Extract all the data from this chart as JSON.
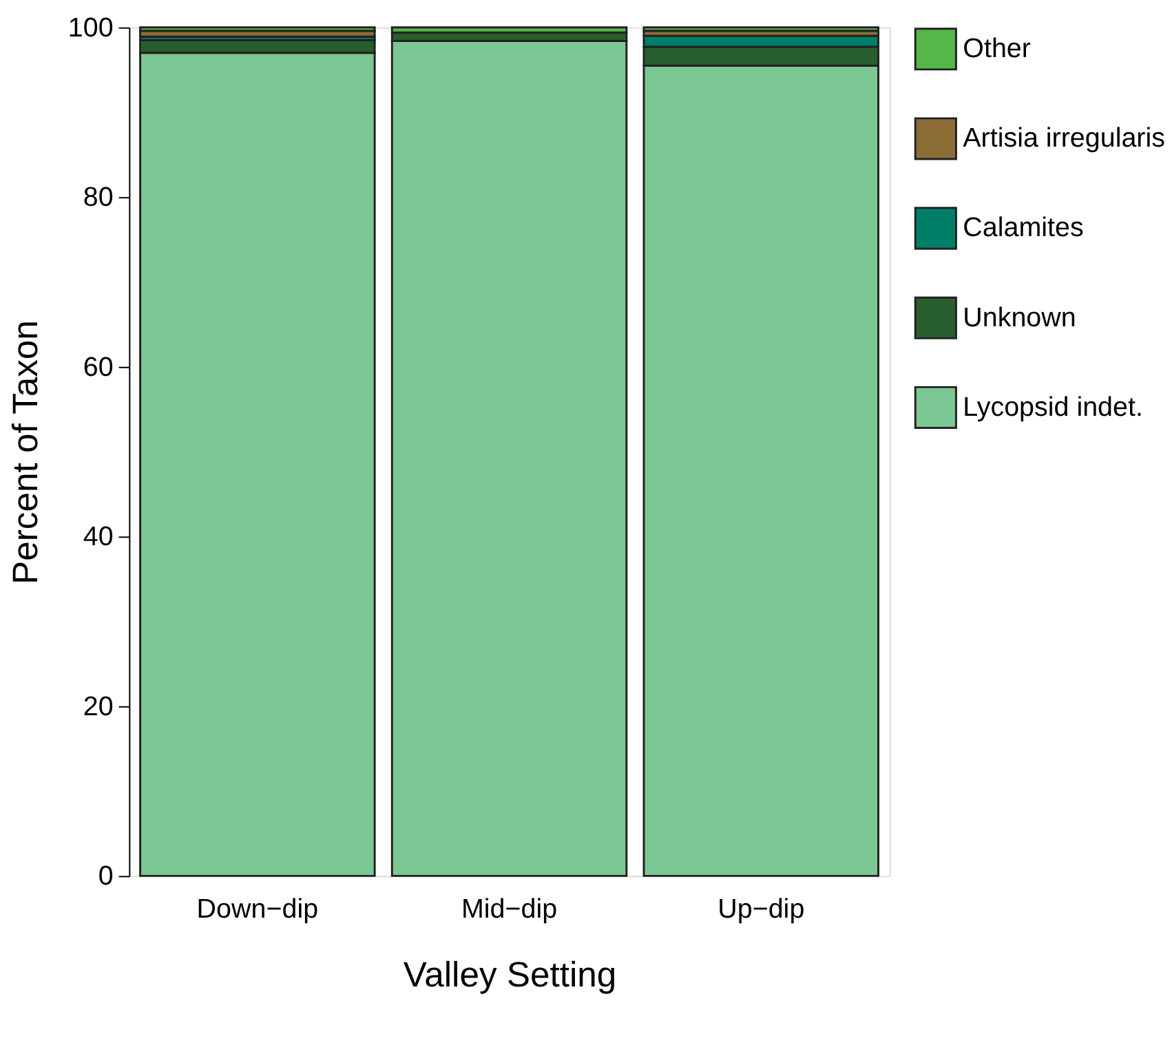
{
  "chart_data": {
    "type": "bar",
    "stacked": true,
    "xlabel": "Valley Setting",
    "ylabel": "Percent of Taxon",
    "categories": [
      "Down−dip",
      "Mid−dip",
      "Up−dip"
    ],
    "series": [
      {
        "name": "Lycopsid indet.",
        "color": "#7bc794",
        "values": [
          97.0,
          98.4,
          95.5
        ]
      },
      {
        "name": "Unknown",
        "color": "#285e2e",
        "values": [
          1.5,
          1.0,
          2.2
        ]
      },
      {
        "name": "Calamites",
        "color": "#007f68",
        "values": [
          0.4,
          0.0,
          1.3
        ]
      },
      {
        "name": "Artisia irregularis",
        "color": "#8c6d38",
        "values": [
          0.7,
          0.0,
          0.6
        ]
      },
      {
        "name": "Other",
        "color": "#55b748",
        "values": [
          0.4,
          0.6,
          0.4
        ]
      }
    ],
    "ylim": [
      0,
      100
    ],
    "yticks": [
      0,
      20,
      40,
      60,
      80,
      100
    ],
    "grid": false,
    "legend": "right"
  }
}
